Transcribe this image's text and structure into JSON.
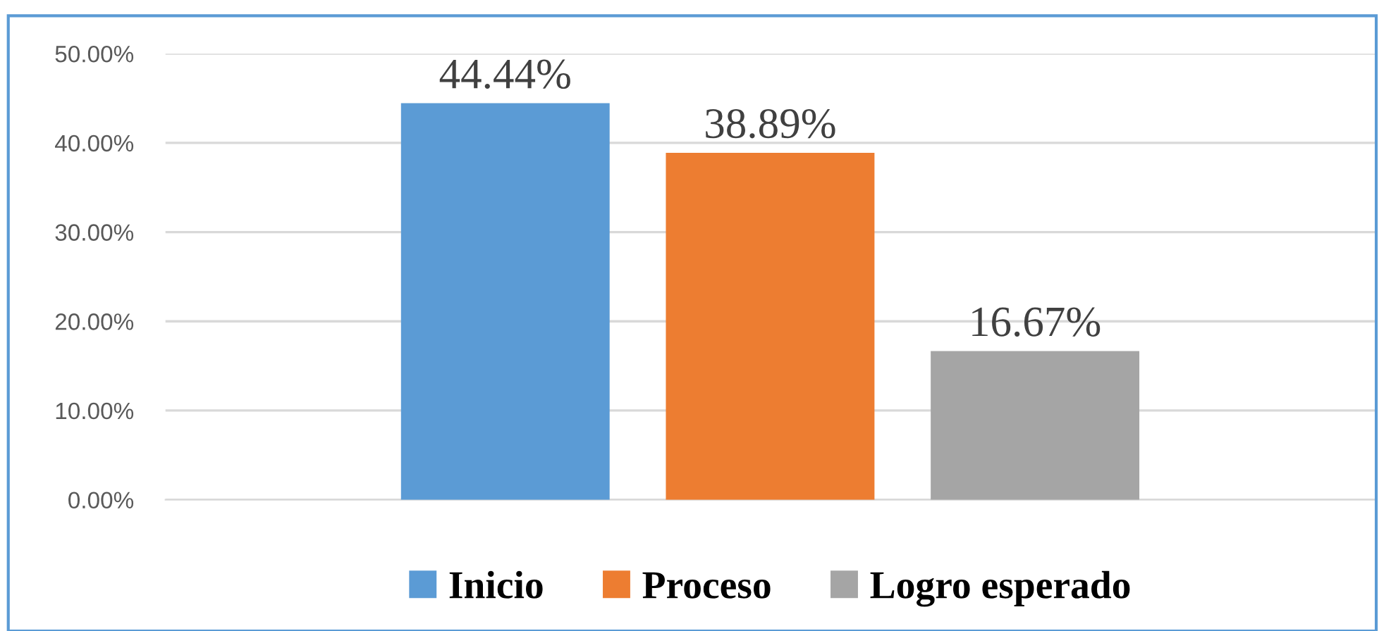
{
  "chart_data": {
    "type": "bar",
    "categories": [
      null
    ],
    "series": [
      {
        "name": "Inicio",
        "color": "#5b9bd5",
        "values": [
          44.44
        ],
        "value_labels": [
          "44.44%"
        ]
      },
      {
        "name": "Proceso",
        "color": "#ed7d31",
        "values": [
          38.89
        ],
        "value_labels": [
          "38.89%"
        ]
      },
      {
        "name": "Logro esperado",
        "color": "#a5a5a5",
        "values": [
          16.67
        ],
        "value_labels": [
          "16.67%"
        ]
      }
    ],
    "ylim": [
      0,
      50
    ],
    "yticks": [
      {
        "value": 0,
        "label": "0.00%"
      },
      {
        "value": 10,
        "label": "10.00%"
      },
      {
        "value": 20,
        "label": "20.00%"
      },
      {
        "value": 30,
        "label": "30.00%"
      },
      {
        "value": 40,
        "label": "40.00%"
      },
      {
        "value": 50,
        "label": "50.00%"
      }
    ],
    "grid": "y",
    "legend": "bottom"
  }
}
